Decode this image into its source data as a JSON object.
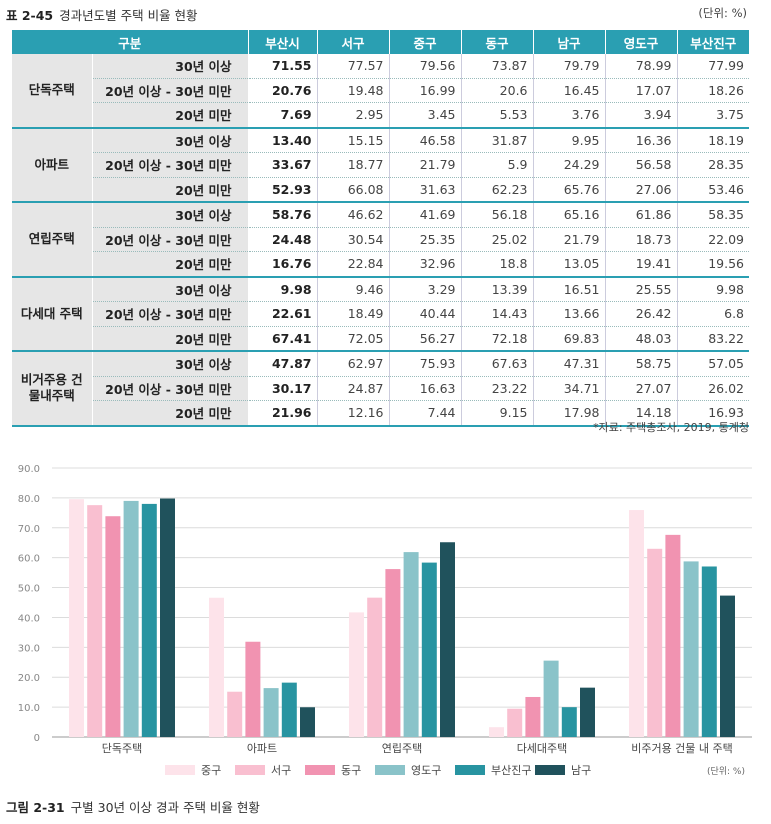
{
  "table_caption": {
    "label": "표 2-45",
    "title": "경과년도별 주택 비율 현황",
    "unit": "(단위: %)"
  },
  "table": {
    "headers": [
      "구분",
      "부산시",
      "서구",
      "중구",
      "동구",
      "남구",
      "영도구",
      "부산진구"
    ],
    "groups": [
      {
        "name": "단독주택",
        "rows": [
          {
            "label": "30년 이상",
            "busan": "71.55",
            "values": [
              "77.57",
              "79.56",
              "73.87",
              "79.79",
              "78.99",
              "77.99"
            ]
          },
          {
            "label": "20년 이상 - 30년 미만",
            "busan": "20.76",
            "values": [
              "19.48",
              "16.99",
              "20.6",
              "16.45",
              "17.07",
              "18.26"
            ]
          },
          {
            "label": "20년 미만",
            "busan": "7.69",
            "values": [
              "2.95",
              "3.45",
              "5.53",
              "3.76",
              "3.94",
              "3.75"
            ]
          }
        ]
      },
      {
        "name": "아파트",
        "rows": [
          {
            "label": "30년 이상",
            "busan": "13.40",
            "values": [
              "15.15",
              "46.58",
              "31.87",
              "9.95",
              "16.36",
              "18.19"
            ]
          },
          {
            "label": "20년 이상 - 30년 미만",
            "busan": "33.67",
            "values": [
              "18.77",
              "21.79",
              "5.9",
              "24.29",
              "56.58",
              "28.35"
            ]
          },
          {
            "label": "20년 미만",
            "busan": "52.93",
            "values": [
              "66.08",
              "31.63",
              "62.23",
              "65.76",
              "27.06",
              "53.46"
            ]
          }
        ]
      },
      {
        "name": "연립주택",
        "rows": [
          {
            "label": "30년 이상",
            "busan": "58.76",
            "values": [
              "46.62",
              "41.69",
              "56.18",
              "65.16",
              "61.86",
              "58.35"
            ]
          },
          {
            "label": "20년 이상 - 30년 미만",
            "busan": "24.48",
            "values": [
              "30.54",
              "25.35",
              "25.02",
              "21.79",
              "18.73",
              "22.09"
            ]
          },
          {
            "label": "20년 미만",
            "busan": "16.76",
            "values": [
              "22.84",
              "32.96",
              "18.8",
              "13.05",
              "19.41",
              "19.56"
            ]
          }
        ]
      },
      {
        "name": "다세대 주택",
        "rows": [
          {
            "label": "30년 이상",
            "busan": "9.98",
            "values": [
              "9.46",
              "3.29",
              "13.39",
              "16.51",
              "25.55",
              "9.98"
            ]
          },
          {
            "label": "20년 이상 - 30년 미만",
            "busan": "22.61",
            "values": [
              "18.49",
              "40.44",
              "14.43",
              "13.66",
              "26.42",
              "6.8"
            ]
          },
          {
            "label": "20년 미만",
            "busan": "67.41",
            "values": [
              "72.05",
              "56.27",
              "72.18",
              "69.83",
              "48.03",
              "83.22"
            ]
          }
        ]
      },
      {
        "name": "비거주용 건물내주택",
        "rows": [
          {
            "label": "30년 이상",
            "busan": "47.87",
            "values": [
              "62.97",
              "75.93",
              "67.63",
              "47.31",
              "58.75",
              "57.05"
            ]
          },
          {
            "label": "20년 이상 - 30년 미만",
            "busan": "30.17",
            "values": [
              "24.87",
              "16.63",
              "23.22",
              "34.71",
              "27.07",
              "26.02"
            ]
          },
          {
            "label": "20년 미만",
            "busan": "21.96",
            "values": [
              "12.16",
              "7.44",
              "9.15",
              "17.98",
              "14.18",
              "16.93"
            ]
          }
        ]
      }
    ]
  },
  "source": "*자료: 주택총조사, 2019, 통계청",
  "chart_data": {
    "type": "bar",
    "categories": [
      "단독주택",
      "아파트",
      "연립주택",
      "다세대주택",
      "비주거용 건물 내 주택"
    ],
    "ylim": [
      0,
      90
    ],
    "yticks": [
      "0",
      "10.0",
      "20.0",
      "30.0",
      "40.0",
      "50.0",
      "60.0",
      "70.0",
      "80.0",
      "90.0"
    ],
    "grid": true,
    "legend_position": "bottom",
    "unit_note": "(단위: %)",
    "series": [
      {
        "name": "중구",
        "color": "#fde3ea",
        "values": [
          79.56,
          46.58,
          41.69,
          3.29,
          75.93
        ]
      },
      {
        "name": "서구",
        "color": "#f9bfd0",
        "values": [
          77.57,
          15.15,
          46.62,
          9.46,
          62.97
        ]
      },
      {
        "name": "동구",
        "color": "#f193b1",
        "values": [
          73.87,
          31.87,
          56.18,
          13.39,
          67.63
        ]
      },
      {
        "name": "영도구",
        "color": "#8ac3c9",
        "values": [
          78.99,
          16.36,
          61.86,
          25.55,
          58.75
        ]
      },
      {
        "name": "부산진구",
        "color": "#2894a1",
        "values": [
          77.99,
          18.19,
          58.35,
          9.98,
          57.05
        ]
      },
      {
        "name": "남구",
        "color": "#20525c",
        "values": [
          79.79,
          9.95,
          65.16,
          16.51,
          47.31
        ]
      }
    ]
  },
  "figure_caption": {
    "label": "그림 2-31",
    "title": "구별 30년 이상 경과 주택 비율 현황"
  }
}
